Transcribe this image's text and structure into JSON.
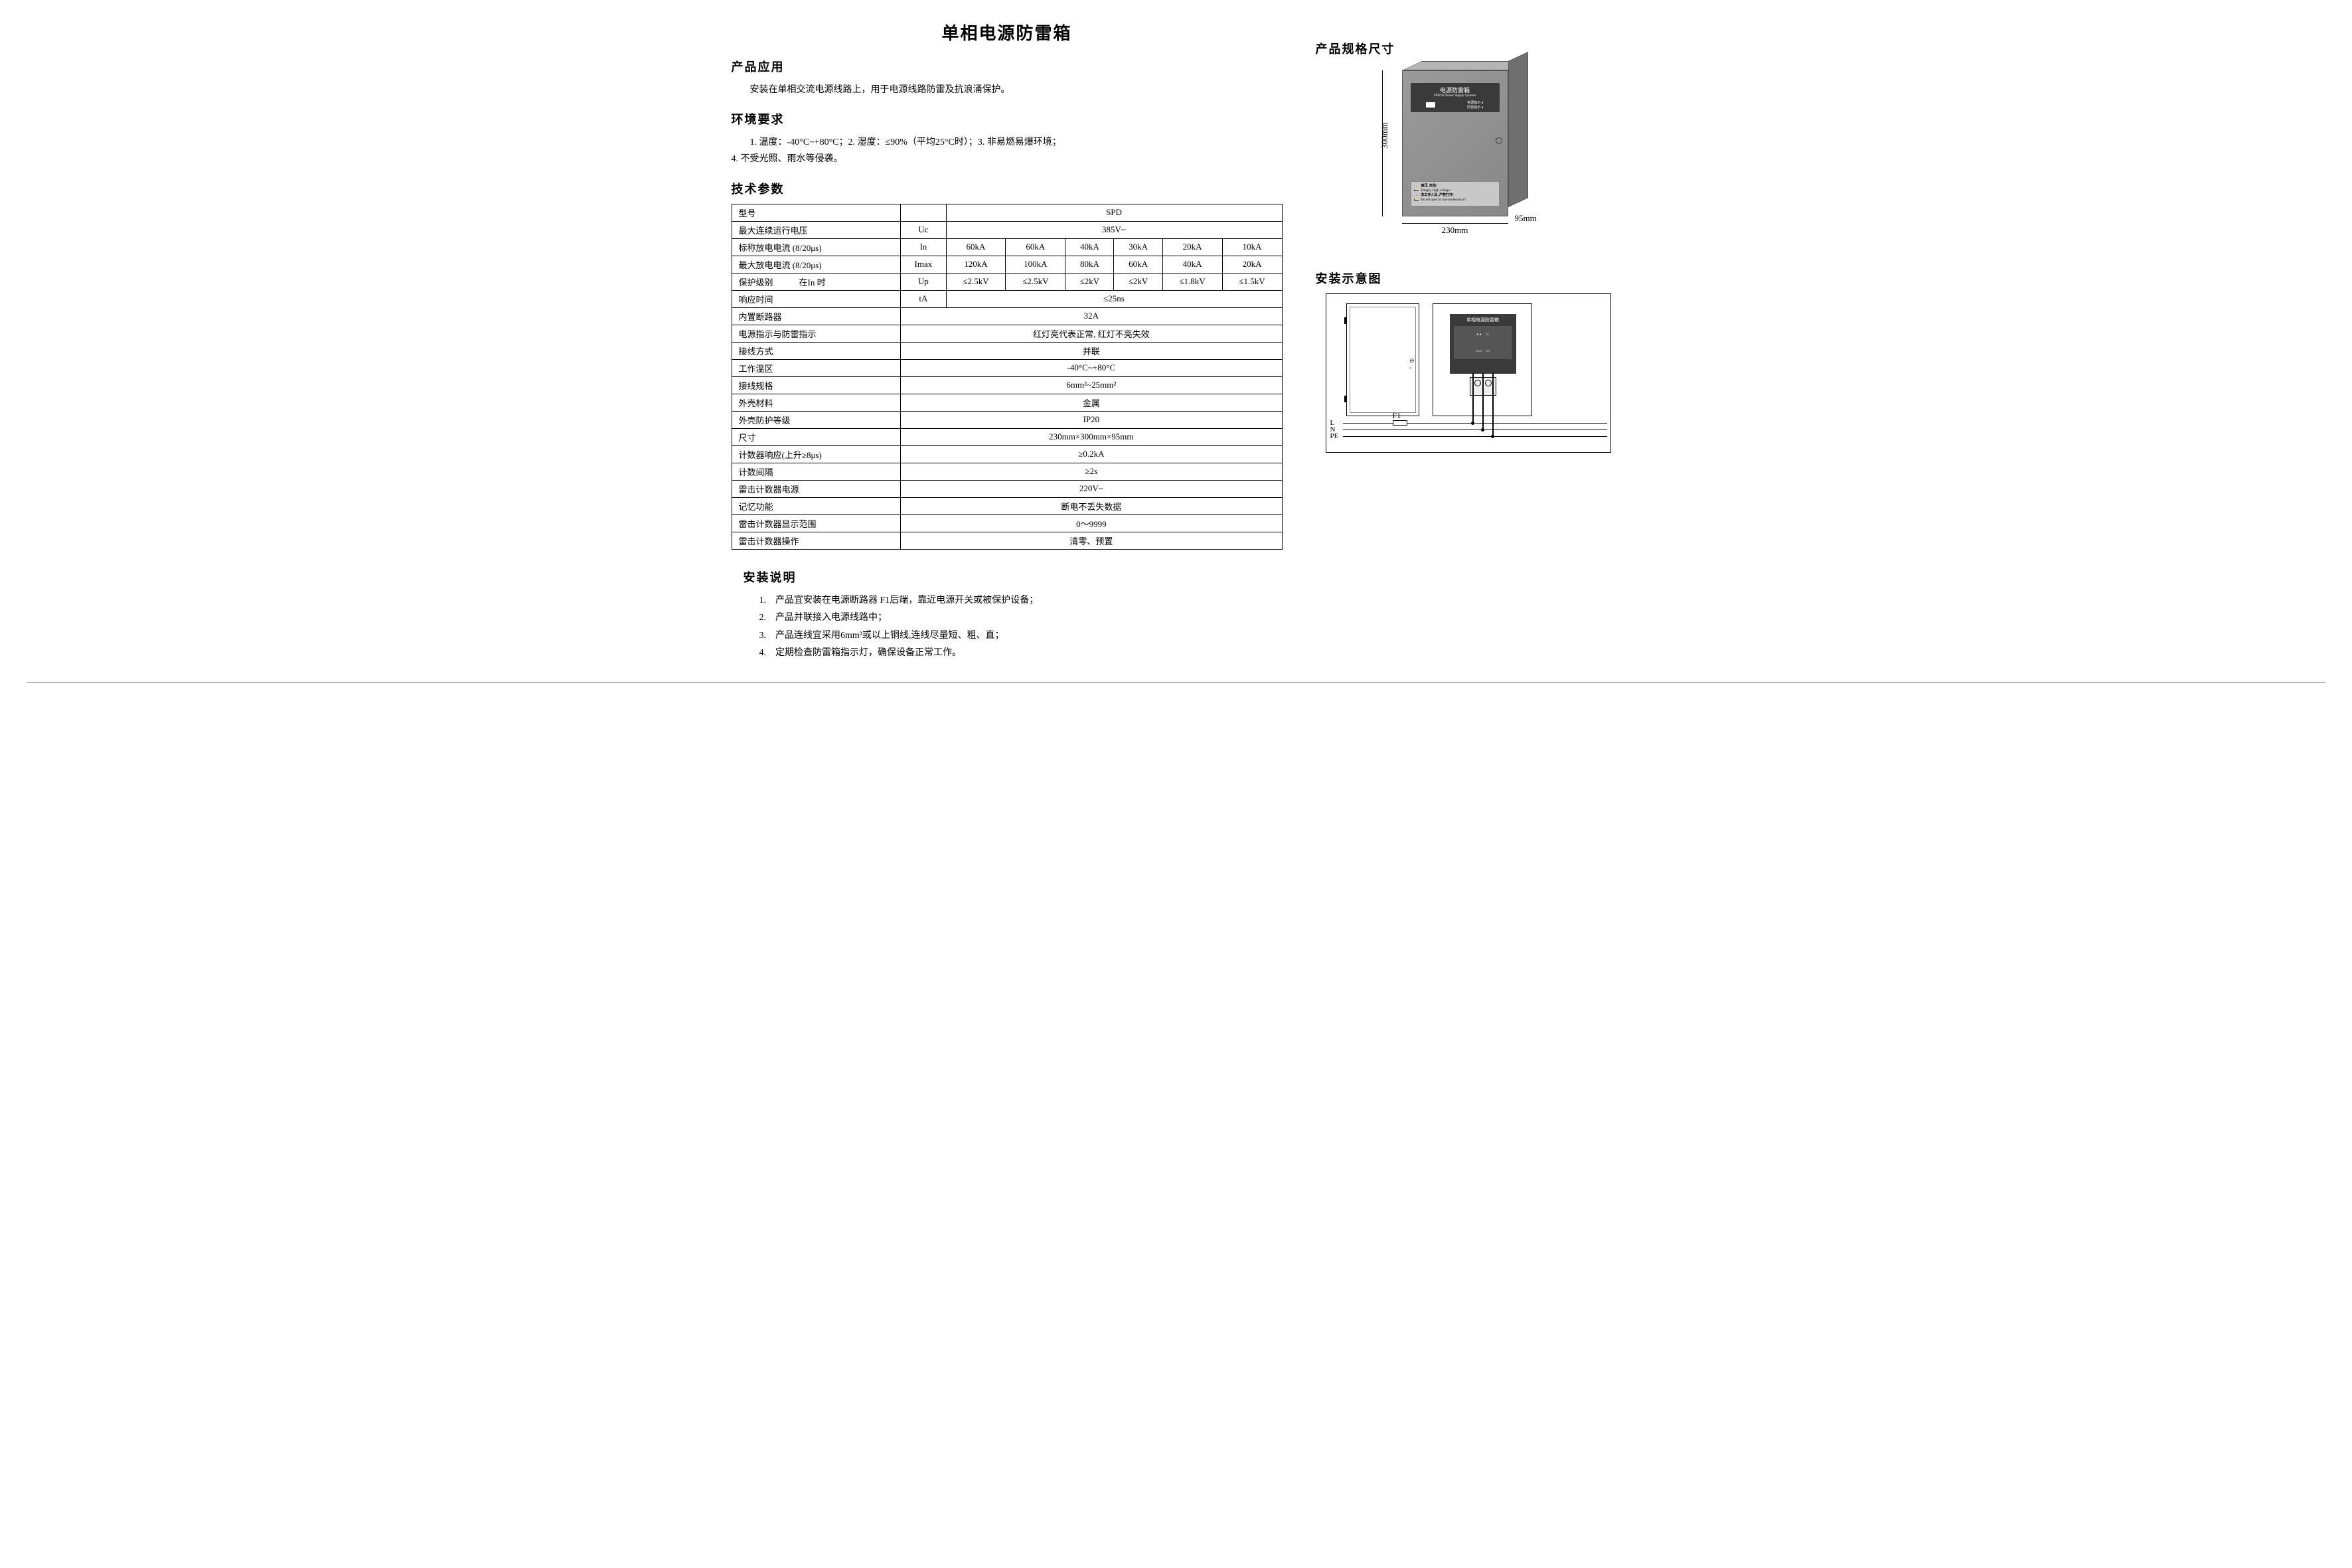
{
  "title": "单相电源防雷箱",
  "sections": {
    "app_h": "产品应用",
    "app_t": "安装在单相交流电源线路上，用于电源线路防雷及抗浪涌保护。",
    "env_h": "环境要求",
    "env_t": "　　1. 温度：-40°C~+80°C；2. 湿度：≤90%（平均25°C时）；3. 非易燃易爆环境；\n4. 不受光照、雨水等侵袭。",
    "spec_h": "技术参数",
    "inst_h": "安装说明",
    "dim_h": "产品规格尺寸",
    "diagram_h": "安装示意图"
  },
  "table": {
    "model_label": "型号",
    "model_value": "SPD",
    "rows_multi": [
      {
        "label": "最大连续运行电压",
        "sym": "Uc",
        "span": "385V~"
      },
      {
        "label": "标称放电电流 (8/20μs)",
        "sym": "In",
        "cells": [
          "60kA",
          "60kA",
          "40kA",
          "30kA",
          "20kA",
          "10kA"
        ]
      },
      {
        "label": "最大放电电流 (8/20μs)",
        "sym": "Imax",
        "cells": [
          "120kA",
          "100kA",
          "80kA",
          "60kA",
          "40kA",
          "20kA"
        ]
      },
      {
        "label": "保护级别　　　在In 时",
        "sym": "Up",
        "cells": [
          "≤2.5kV",
          "≤2.5kV",
          "≤2kV",
          "≤2kV",
          "≤1.8kV",
          "≤1.5kV"
        ]
      },
      {
        "label": "响应时间",
        "sym": "tA",
        "span": "≤25ns"
      }
    ],
    "rows_single": [
      {
        "label": "内置断路器",
        "val": "32A"
      },
      {
        "label": "电源指示与防雷指示",
        "val": "红灯亮代表正常, 红灯不亮失效"
      },
      {
        "label": "接线方式",
        "val": "并联"
      },
      {
        "label": "工作温区",
        "val": "-40°C~+80°C"
      },
      {
        "label": "接线规格",
        "val": "6mm²~25mm²"
      },
      {
        "label": "外壳材料",
        "val": "金属"
      },
      {
        "label": "外壳防护等级",
        "val": "IP20"
      },
      {
        "label": "尺寸",
        "val": "230mm×300mm×95mm"
      },
      {
        "label": "计数器响应(上升≥8μs)",
        "val": "≥0.2kA"
      },
      {
        "label": "计数间隔",
        "val": "≥2s"
      },
      {
        "label": "雷击计数器电源",
        "val": "220V~"
      },
      {
        "label": "记忆功能",
        "val": "断电不丢失数据"
      },
      {
        "label": "雷击计数器显示范围",
        "val": "0～9999"
      },
      {
        "label": "雷击计数器操作",
        "val": "清零、预置"
      }
    ]
  },
  "install_steps": [
    "1.　产品宜安装在电源断路器 F1后端，靠近电源开关或被保护设备；",
    "2.　产品并联接入电源线路中；",
    "3.　产品连线宜采用6mm²或以上铜线,连线尽量短、粗、直；",
    "4.　定期检查防雷箱指示灯，确保设备正常工作。"
  ],
  "box": {
    "title": "电源防雷箱",
    "sub": "SPD for Power Supply Systems",
    "panel_l": "雷击计数",
    "panel_r1": "电源指示 ●",
    "panel_r2": "防雷指示 ●",
    "warn1": "高压, 危险!",
    "warn1en": "Danger, High voltage!",
    "warn2": "非工作人员, 严禁打开!",
    "warn2en": "Do not open by non-professional!",
    "dim_h": "300mm",
    "dim_w": "230mm",
    "dim_d": "95mm"
  },
  "diagram": {
    "spd_title": "单相电源防雷箱",
    "F1": "F1",
    "L": "L",
    "N": "N",
    "PE": "PE"
  }
}
